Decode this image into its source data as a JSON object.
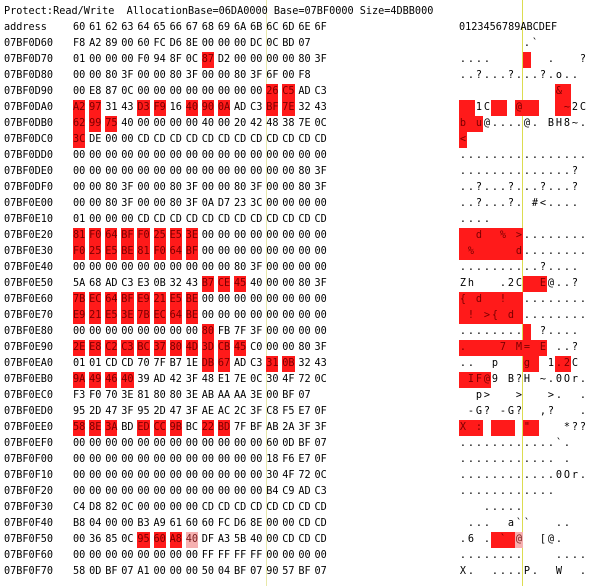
{
  "info_line": "Protect:Read/Write  AllocationBase=06DA0000 Base=07BF0000 Size=4DBB000",
  "header": {
    "address": "address",
    "columns": [
      "60",
      "61",
      "62",
      "63",
      "64",
      "65",
      "66",
      "67",
      "68",
      "69",
      "6A",
      "6B",
      "6C",
      "6D",
      "6E",
      "6F"
    ],
    "ascii_header": "0123456789ABCDEF"
  },
  "rows": [
    {
      "addr": "07BF0D60",
      "bytes": [
        "F8",
        "A2",
        "89",
        "00",
        "60",
        "FC",
        "D6",
        "8E",
        "00",
        "00",
        "00",
        "DC",
        "0C",
        "BD",
        "07",
        ""
      ],
      "ascii": "        .`      ",
      "hl": []
    },
    {
      "addr": "07BF0D70",
      "bytes": [
        "01",
        "00",
        "00",
        "00",
        "F0",
        "94",
        "8F",
        "0C",
        "87",
        "D2",
        "00",
        "00",
        "00",
        "00",
        "80",
        "3F"
      ],
      "ascii": "....       .   ?",
      "hl": [
        8
      ]
    },
    {
      "addr": "07BF0D80",
      "bytes": [
        "00",
        "00",
        "80",
        "3F",
        "00",
        "00",
        "80",
        "3F",
        "00",
        "00",
        "80",
        "3F",
        "6F",
        "00",
        "F8",
        ""
      ],
      "ascii": "..?...?...?.o..",
      "hl": []
    },
    {
      "addr": "07BF0D90",
      "bytes": [
        "00",
        "E8",
        "87",
        "0C",
        "00",
        "00",
        "00",
        "00",
        "00",
        "00",
        "00",
        "00",
        "26",
        "C5",
        "AD",
        "C3"
      ],
      "ascii": "            &   ",
      "hl": [
        12,
        13
      ]
    },
    {
      "addr": "07BF0DA0",
      "bytes": [
        "A2",
        "97",
        "31",
        "43",
        "D3",
        "F9",
        "16",
        "40",
        "90",
        "0A",
        "AD",
        "C3",
        "BF",
        "7E",
        "32",
        "43"
      ],
      "ascii": "  1C   @     ~2C",
      "hl": [
        0,
        1,
        4,
        5,
        7,
        8,
        9,
        12,
        13
      ]
    },
    {
      "addr": "07BF0DB0",
      "bytes": [
        "62",
        "99",
        "75",
        "40",
        "00",
        "00",
        "00",
        "00",
        "40",
        "00",
        "20",
        "42",
        "48",
        "38",
        "7E",
        "0C"
      ],
      "ascii": "b u@....@. BH8~.",
      "hl": [
        0,
        1,
        2
      ]
    },
    {
      "addr": "07BF0DC0",
      "bytes": [
        "3C",
        "DE",
        "00",
        "00",
        "CD",
        "CD",
        "CD",
        "CD",
        "CD",
        "CD",
        "CD",
        "CD",
        "CD",
        "CD",
        "CD",
        "CD"
      ],
      "ascii": "<               ",
      "hl": [
        0
      ]
    },
    {
      "addr": "07BF0DD0",
      "bytes": [
        "00",
        "00",
        "00",
        "00",
        "00",
        "00",
        "00",
        "00",
        "00",
        "00",
        "00",
        "00",
        "00",
        "00",
        "00",
        "00"
      ],
      "ascii": "................",
      "hl": []
    },
    {
      "addr": "07BF0DE0",
      "bytes": [
        "00",
        "00",
        "00",
        "00",
        "00",
        "00",
        "00",
        "00",
        "00",
        "00",
        "00",
        "00",
        "00",
        "00",
        "80",
        "3F"
      ],
      "ascii": "..............?",
      "hl": []
    },
    {
      "addr": "07BF0DF0",
      "bytes": [
        "00",
        "00",
        "80",
        "3F",
        "00",
        "00",
        "80",
        "3F",
        "00",
        "00",
        "80",
        "3F",
        "00",
        "00",
        "80",
        "3F"
      ],
      "ascii": "..?...?...?...?",
      "hl": []
    },
    {
      "addr": "07BF0E00",
      "bytes": [
        "00",
        "00",
        "80",
        "3F",
        "00",
        "00",
        "80",
        "3F",
        "0A",
        "D7",
        "23",
        "3C",
        "00",
        "00",
        "00",
        "00"
      ],
      "ascii": "..?...?. #<....",
      "hl": []
    },
    {
      "addr": "07BF0E10",
      "bytes": [
        "01",
        "00",
        "00",
        "00",
        "CD",
        "CD",
        "CD",
        "CD",
        "CD",
        "CD",
        "CD",
        "CD",
        "CD",
        "CD",
        "CD",
        "CD"
      ],
      "ascii": "....            ",
      "hl": []
    },
    {
      "addr": "07BF0E20",
      "bytes": [
        "81",
        "F0",
        "64",
        "BF",
        "F0",
        "25",
        "E5",
        "3E",
        "00",
        "00",
        "00",
        "00",
        "00",
        "00",
        "00",
        "00"
      ],
      "ascii": "  d  % >........",
      "hl": [
        0,
        1,
        2,
        3,
        4,
        5,
        6,
        7
      ]
    },
    {
      "addr": "07BF0E30",
      "bytes": [
        "F0",
        "25",
        "E5",
        "BE",
        "81",
        "F0",
        "64",
        "BF",
        "00",
        "00",
        "00",
        "00",
        "00",
        "00",
        "00",
        "00"
      ],
      "ascii": " %     d........",
      "hl": [
        0,
        1,
        2,
        3,
        4,
        5,
        6,
        7
      ]
    },
    {
      "addr": "07BF0E40",
      "bytes": [
        "00",
        "00",
        "00",
        "00",
        "00",
        "00",
        "00",
        "00",
        "00",
        "00",
        "80",
        "3F",
        "00",
        "00",
        "00",
        "00"
      ],
      "ascii": "..........?....",
      "hl": []
    },
    {
      "addr": "07BF0E50",
      "bytes": [
        "5A",
        "68",
        "AD",
        "C3",
        "E3",
        "0B",
        "32",
        "43",
        "B7",
        "CE",
        "45",
        "40",
        "00",
        "00",
        "80",
        "3F"
      ],
      "ascii": "Zh   .2C  E@..?",
      "hl": [
        8,
        9,
        10
      ]
    },
    {
      "addr": "07BF0E60",
      "bytes": [
        "7B",
        "EC",
        "64",
        "BF",
        "E9",
        "21",
        "E5",
        "BE",
        "00",
        "00",
        "00",
        "00",
        "00",
        "00",
        "00",
        "00"
      ],
      "ascii": "{ d  !  ........",
      "hl": [
        0,
        1,
        2,
        3,
        4,
        5,
        6,
        7
      ]
    },
    {
      "addr": "07BF0E70",
      "bytes": [
        "E9",
        "21",
        "E5",
        "3E",
        "7B",
        "EC",
        "64",
        "BE",
        "00",
        "00",
        "00",
        "00",
        "00",
        "00",
        "00",
        "00"
      ],
      "ascii": " ! >{ d ........",
      "hl": [
        0,
        1,
        2,
        3,
        4,
        5,
        6,
        7
      ]
    },
    {
      "addr": "07BF0E80",
      "bytes": [
        "00",
        "00",
        "00",
        "00",
        "00",
        "00",
        "00",
        "00",
        "80",
        "FB",
        "7F",
        "3F",
        "00",
        "00",
        "00",
        "00"
      ],
      "ascii": "........  ?....",
      "hl": [
        8
      ]
    },
    {
      "addr": "07BF0E90",
      "bytes": [
        "2E",
        "E8",
        "C2",
        "C3",
        "BC",
        "37",
        "80",
        "4D",
        "3D",
        "CB",
        "45",
        "C0",
        "00",
        "00",
        "80",
        "3F"
      ],
      "ascii": ".    7 M= E ..?",
      "hl": [
        0,
        1,
        2,
        3,
        4,
        5,
        6,
        7,
        8,
        9,
        10
      ]
    },
    {
      "addr": "07BF0EA0",
      "bytes": [
        "01",
        "01",
        "CD",
        "CD",
        "70",
        "7F",
        "B7",
        "1E",
        "DB",
        "67",
        "AD",
        "C3",
        "31",
        "0B",
        "32",
        "43"
      ],
      "ascii": "..  p   g  1.2C",
      "hl": [
        8,
        9,
        12,
        13
      ]
    },
    {
      "addr": "07BF0EB0",
      "bytes": [
        "9A",
        "49",
        "46",
        "40",
        "39",
        "AD",
        "42",
        "3F",
        "48",
        "E1",
        "7E",
        "0C",
        "30",
        "4F",
        "72",
        "0C"
      ],
      "ascii": " IF@9 B?H ~.0Or.",
      "hl": [
        0,
        1,
        2,
        3
      ]
    },
    {
      "addr": "07BF0EC0",
      "bytes": [
        "F3",
        "F0",
        "70",
        "3E",
        "81",
        "80",
        "80",
        "3E",
        "AB",
        "AA",
        "AA",
        "3E",
        "00",
        "BF",
        "07",
        ""
      ],
      "ascii": "  p>   >   >.  .",
      "hl": []
    },
    {
      "addr": "07BF0ED0",
      "bytes": [
        "95",
        "2D",
        "47",
        "3F",
        "95",
        "2D",
        "47",
        "3F",
        "AE",
        "AC",
        "2C",
        "3F",
        "C8",
        "F5",
        "E7",
        "0F"
      ],
      "ascii": " -G? -G?  ,?   .",
      "hl": []
    },
    {
      "addr": "07BF0EE0",
      "bytes": [
        "58",
        "8E",
        "3A",
        "BD",
        "ED",
        "CC",
        "9B",
        "BC",
        "22",
        "BD",
        "7F",
        "BF",
        "AB",
        "2A",
        "3F",
        "3F"
      ],
      "ascii": "X :     \"    *??",
      "hl": [
        0,
        1,
        2,
        4,
        5,
        6,
        8,
        9
      ]
    },
    {
      "addr": "07BF0EF0",
      "bytes": [
        "00",
        "00",
        "00",
        "00",
        "00",
        "00",
        "00",
        "00",
        "00",
        "00",
        "00",
        "00",
        "60",
        "0D",
        "BF",
        "07"
      ],
      "ascii": "............`.  ",
      "hl": []
    },
    {
      "addr": "07BF0F00",
      "bytes": [
        "00",
        "00",
        "00",
        "00",
        "00",
        "00",
        "00",
        "00",
        "00",
        "00",
        "00",
        "00",
        "18",
        "F6",
        "E7",
        "0F"
      ],
      "ascii": "............ .  ",
      "hl": []
    },
    {
      "addr": "07BF0F10",
      "bytes": [
        "00",
        "00",
        "00",
        "00",
        "00",
        "00",
        "00",
        "00",
        "00",
        "00",
        "00",
        "00",
        "30",
        "4F",
        "72",
        "0C"
      ],
      "ascii": "............0Or.",
      "hl": []
    },
    {
      "addr": "07BF0F20",
      "bytes": [
        "00",
        "00",
        "00",
        "00",
        "00",
        "00",
        "00",
        "00",
        "00",
        "00",
        "00",
        "00",
        "B4",
        "C9",
        "AD",
        "C3"
      ],
      "ascii": "............    ",
      "hl": []
    },
    {
      "addr": "07BF0F30",
      "bytes": [
        "C4",
        "D8",
        "82",
        "0C",
        "00",
        "00",
        "00",
        "00",
        "CD",
        "CD",
        "CD",
        "CD",
        "CD",
        "CD",
        "CD",
        "CD"
      ],
      "ascii": "   .....        ",
      "hl": []
    },
    {
      "addr": "07BF0F40",
      "bytes": [
        "B8",
        "04",
        "00",
        "00",
        "B3",
        "A9",
        "61",
        "60",
        "60",
        "FC",
        "D6",
        "8E",
        "00",
        "00",
        "CD",
        "CD"
      ],
      "ascii": " ...  a``   ..  ",
      "hl": []
    },
    {
      "addr": "07BF0F50",
      "bytes": [
        "00",
        "36",
        "85",
        "0C",
        "95",
        "60",
        "A8",
        "40",
        "DF",
        "A3",
        "5B",
        "40",
        "00",
        "CD",
        "CD",
        "CD"
      ],
      "ascii": ".6 . ` @  [@.   ",
      "hl": [
        4,
        5,
        6
      ],
      "hlp": [
        7
      ]
    },
    {
      "addr": "07BF0F60",
      "bytes": [
        "00",
        "00",
        "00",
        "00",
        "00",
        "00",
        "00",
        "00",
        "FF",
        "FF",
        "FF",
        "FF",
        "00",
        "00",
        "00",
        "00"
      ],
      "ascii": "........    ....",
      "hl": []
    },
    {
      "addr": "07BF0F70",
      "bytes": [
        "58",
        "0D",
        "BF",
        "07",
        "A1",
        "00",
        "00",
        "00",
        "50",
        "04",
        "BF",
        "07",
        "90",
        "57",
        "BF",
        "07"
      ],
      "ascii": "X.  ....P.  W  .",
      "hl": []
    }
  ]
}
